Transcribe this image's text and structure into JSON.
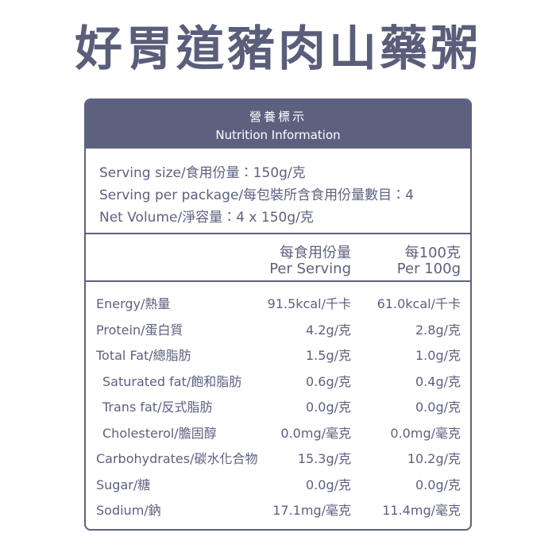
{
  "title": "好胃道豬肉山藥粥",
  "panel": {
    "header": {
      "zh": "營養標示",
      "en": "Nutrition Information"
    },
    "serving": [
      "Serving size/食用份量：150g/克",
      "Serving per package/每包裝所含食用份量數目：4",
      "Net Volume/淨容量：4 x 150g/克"
    ],
    "columns": [
      {
        "zh": "每食用份量",
        "en": "Per Serving"
      },
      {
        "zh": "每100克",
        "en": "Per 100g"
      }
    ],
    "rows": [
      {
        "name": "Energy/熱量",
        "per_serving": "91.5kcal/千卡",
        "per_100g": "61.0kcal/千卡"
      },
      {
        "name": "Protein/蛋白質",
        "per_serving": "4.2g/克",
        "per_100g": "2.8g/克"
      },
      {
        "name": "Total Fat/總脂肪",
        "per_serving": "1.5g/克",
        "per_100g": "1.0g/克"
      },
      {
        "name": "Saturated fat/飽和脂肪",
        "per_serving": "0.6g/克",
        "per_100g": "0.4g/克",
        "indent": true
      },
      {
        "name": "Trans fat/反式脂肪",
        "per_serving": "0.0g/克",
        "per_100g": "0.0g/克",
        "indent": true
      },
      {
        "name": "Cholesterol/膽固醇",
        "per_serving": "0.0mg/毫克",
        "per_100g": "0.0mg/毫克",
        "indent": true
      },
      {
        "name": "Carbohydrates/碳水化合物",
        "per_serving": "15.3g/克",
        "per_100g": "10.2g/克"
      },
      {
        "name": "Sugar/糖",
        "per_serving": "0.0g/克",
        "per_100g": "0.0g/克"
      },
      {
        "name": "Sodium/鈉",
        "per_serving": "17.1mg/毫克",
        "per_100g": "11.4mg/毫克"
      }
    ]
  }
}
